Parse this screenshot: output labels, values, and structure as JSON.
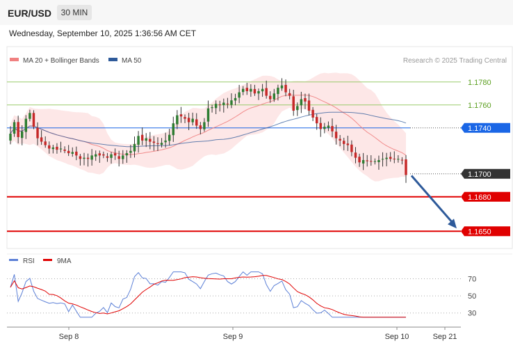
{
  "header": {
    "symbol": "EUR/USD",
    "timeframe": "30 MIN",
    "datetime": "Wednesday, September 10, 2025 1:36:56 AM CET"
  },
  "legend": {
    "ma20_label": "MA 20 + Bollinger Bands",
    "ma20_color": "#f08080",
    "ma50_label": "MA 50",
    "ma50_color": "#2e5a9a",
    "copyright": "Research © 2025 Trading Central"
  },
  "rsi_legend": {
    "rsi_label": "RSI",
    "rsi_color": "#5b7fd6",
    "ma9_label": "9MA",
    "ma9_color": "#e00000"
  },
  "price_levels": [
    {
      "value": 1.178,
      "label": "1.1780",
      "style": "green-line"
    },
    {
      "value": 1.176,
      "label": "1.1760",
      "style": "green-line"
    },
    {
      "value": 1.174,
      "label": "1.1740",
      "style": "blue-badge",
      "color": "#1a66e6"
    },
    {
      "value": 1.17,
      "label": "1.1700",
      "style": "current-price",
      "color": "#333333"
    },
    {
      "value": 1.168,
      "label": "1.1680",
      "style": "red-badge",
      "color": "#e00000"
    },
    {
      "value": 1.165,
      "label": "1.1650",
      "style": "red-badge",
      "color": "#e00000"
    }
  ],
  "chart_data": {
    "type": "candlestick",
    "xlabels": [
      "Sep 8",
      "Sep 9",
      "Sep 10",
      "Sep 21"
    ],
    "ylim": [
      1.1635,
      1.1792
    ],
    "rsi_ticks": [
      "70",
      "50",
      "30"
    ],
    "close_series": [
      1.1735,
      1.1745,
      1.1732,
      1.1737,
      1.1748,
      1.1753,
      1.1741,
      1.1731,
      1.1728,
      1.1725,
      1.1722,
      1.1723,
      1.1721,
      1.1722,
      1.172,
      1.1718,
      1.1719,
      1.1716,
      1.1713,
      1.1714,
      1.1713,
      1.1716,
      1.1717,
      1.1716,
      1.1716,
      1.1714,
      1.1717,
      1.1716,
      1.1713,
      1.1716,
      1.1718,
      1.172,
      1.1726,
      1.1733,
      1.1729,
      1.1731,
      1.1728,
      1.1727,
      1.1726,
      1.1727,
      1.1729,
      1.1734,
      1.1744,
      1.1751,
      1.175,
      1.1748,
      1.1745,
      1.1748,
      1.1742,
      1.1739,
      1.1745,
      1.1757,
      1.1758,
      1.1761,
      1.176,
      1.1762,
      1.1761,
      1.1764,
      1.1766,
      1.1771,
      1.1774,
      1.1772,
      1.1774,
      1.177,
      1.1772,
      1.1774,
      1.1768,
      1.1765,
      1.177,
      1.1775,
      1.1777,
      1.1771,
      1.1768,
      1.1755,
      1.1759,
      1.1765,
      1.1763,
      1.1755,
      1.1749,
      1.1744,
      1.1739,
      1.1741,
      1.1742,
      1.1737,
      1.1731,
      1.1729,
      1.1726,
      1.1725,
      1.1719,
      1.1714,
      1.171,
      1.1712,
      1.1711,
      1.1711,
      1.1711,
      1.1712,
      1.1713,
      1.1714,
      1.1713,
      1.1713,
      1.1713,
      1.1712,
      1.1699
    ],
    "arrow_target": 1.165
  }
}
